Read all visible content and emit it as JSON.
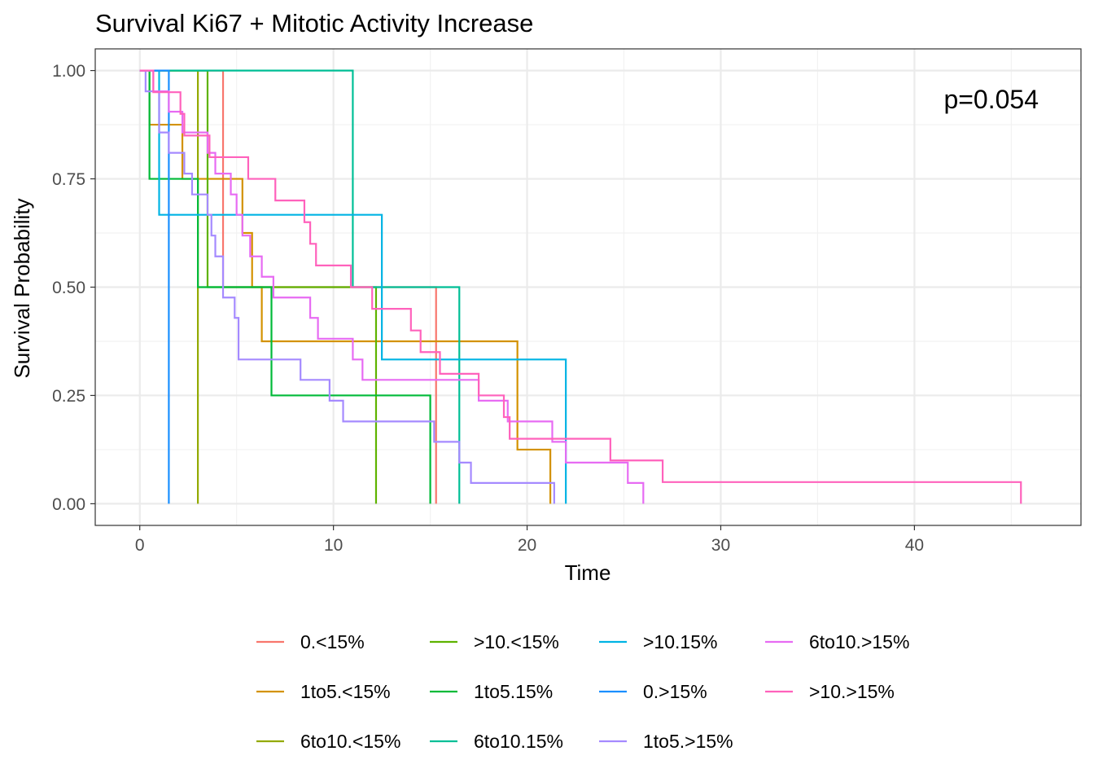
{
  "chart_data": {
    "type": "line",
    "subtype": "kaplan-meier step",
    "title": "Survival Ki67 + Mitotic Activity Increase",
    "xlabel": "Time",
    "ylabel": "Survival Probability",
    "xlim": [
      -2.3,
      48.6
    ],
    "ylim": [
      -0.05,
      1.05
    ],
    "x_ticks": [
      0,
      10,
      20,
      30,
      40
    ],
    "x_tick_labels": [
      "0",
      "10",
      "20",
      "30",
      "40"
    ],
    "y_ticks": [
      0,
      0.25,
      0.5,
      0.75,
      1
    ],
    "y_tick_labels": [
      "0.00",
      "0.25",
      "0.50",
      "0.75",
      "1.00"
    ],
    "grid": true,
    "legend_position": "bottom",
    "annotation": "p=0.054",
    "series": [
      {
        "name": "0.<15%",
        "color": "#F8766D",
        "points": [
          [
            0,
            1
          ],
          [
            4.3,
            1
          ],
          [
            4.3,
            0.5
          ],
          [
            15.3,
            0.5
          ],
          [
            15.3,
            0
          ]
        ]
      },
      {
        "name": "1to5.<15%",
        "color": "#D39200",
        "points": [
          [
            0,
            1
          ],
          [
            0.5,
            1
          ],
          [
            0.5,
            0.875
          ],
          [
            2.2,
            0.875
          ],
          [
            2.2,
            0.75
          ],
          [
            5.3,
            0.75
          ],
          [
            5.3,
            0.625
          ],
          [
            5.8,
            0.625
          ],
          [
            5.8,
            0.5
          ],
          [
            6.0,
            0.5
          ],
          [
            6.0,
            0.5
          ],
          [
            6.3,
            0.5
          ],
          [
            6.3,
            0.375
          ],
          [
            19.5,
            0.375
          ],
          [
            19.5,
            0.125
          ],
          [
            21.2,
            0.125
          ],
          [
            21.2,
            0
          ]
        ]
      },
      {
        "name": "6to10.<15%",
        "color": "#93AA00",
        "points": [
          [
            0,
            1
          ],
          [
            3.0,
            1
          ],
          [
            3.0,
            0
          ]
        ]
      },
      {
        "name": ">10.<15%",
        "color": "#5EB300",
        "points": [
          [
            0,
            1
          ],
          [
            3.5,
            1
          ],
          [
            3.5,
            0.5
          ],
          [
            12.2,
            0.5
          ],
          [
            12.2,
            0
          ]
        ]
      },
      {
        "name": "1to5.15%",
        "color": "#00BA38",
        "points": [
          [
            0,
            1
          ],
          [
            0.5,
            1
          ],
          [
            0.5,
            0.75
          ],
          [
            3.0,
            0.75
          ],
          [
            3.0,
            0.5
          ],
          [
            6.8,
            0.5
          ],
          [
            6.8,
            0.25
          ],
          [
            15.0,
            0.25
          ],
          [
            15.0,
            0
          ]
        ]
      },
      {
        "name": "6to10.15%",
        "color": "#00BF96",
        "points": [
          [
            0,
            1
          ],
          [
            11.0,
            1
          ],
          [
            11.0,
            0.5
          ],
          [
            16.5,
            0.5
          ],
          [
            16.5,
            0
          ]
        ]
      },
      {
        "name": ">10.15%",
        "color": "#00B4E4",
        "points": [
          [
            0,
            1
          ],
          [
            1.0,
            1
          ],
          [
            1.0,
            0.667
          ],
          [
            12.5,
            0.667
          ],
          [
            12.5,
            0.333
          ],
          [
            22.0,
            0.333
          ],
          [
            22.0,
            0
          ]
        ]
      },
      {
        "name": "0.>15%",
        "color": "#1A8FFF",
        "points": [
          [
            0,
            1
          ],
          [
            1.5,
            1
          ],
          [
            1.5,
            0
          ]
        ]
      },
      {
        "name": "1to5.>15%",
        "color": "#A58AFF",
        "points": [
          [
            0,
            1
          ],
          [
            0.3,
            1
          ],
          [
            0.3,
            0.952
          ],
          [
            1.0,
            0.952
          ],
          [
            1.0,
            0.857
          ],
          [
            1.5,
            0.857
          ],
          [
            1.5,
            0.81
          ],
          [
            2.3,
            0.81
          ],
          [
            2.3,
            0.762
          ],
          [
            2.7,
            0.762
          ],
          [
            2.7,
            0.714
          ],
          [
            3.5,
            0.714
          ],
          [
            3.5,
            0.667
          ],
          [
            3.7,
            0.667
          ],
          [
            3.7,
            0.619
          ],
          [
            3.9,
            0.619
          ],
          [
            3.9,
            0.571
          ],
          [
            4.3,
            0.571
          ],
          [
            4.3,
            0.476
          ],
          [
            4.9,
            0.476
          ],
          [
            4.9,
            0.429
          ],
          [
            5.1,
            0.429
          ],
          [
            5.1,
            0.333
          ],
          [
            7.2,
            0.333
          ],
          [
            7.2,
            0.333
          ],
          [
            8.3,
            0.333
          ],
          [
            8.3,
            0.286
          ],
          [
            9.8,
            0.286
          ],
          [
            9.8,
            0.238
          ],
          [
            10.5,
            0.238
          ],
          [
            10.5,
            0.19
          ],
          [
            15.2,
            0.19
          ],
          [
            15.2,
            0.143
          ],
          [
            16.5,
            0.143
          ],
          [
            16.5,
            0.095
          ],
          [
            17.1,
            0.095
          ],
          [
            17.1,
            0.048
          ],
          [
            21.4,
            0.048
          ],
          [
            21.4,
            0
          ]
        ]
      },
      {
        "name": "6to10.>15%",
        "color": "#E76BF3",
        "points": [
          [
            0,
            1
          ],
          [
            0.7,
            1
          ],
          [
            0.7,
            0.952
          ],
          [
            1.5,
            0.952
          ],
          [
            1.5,
            0.905
          ],
          [
            2.2,
            0.905
          ],
          [
            2.2,
            0.857
          ],
          [
            3.5,
            0.857
          ],
          [
            3.5,
            0.81
          ],
          [
            3.9,
            0.81
          ],
          [
            3.9,
            0.762
          ],
          [
            4.7,
            0.762
          ],
          [
            4.7,
            0.714
          ],
          [
            5.0,
            0.714
          ],
          [
            5.0,
            0.667
          ],
          [
            5.3,
            0.667
          ],
          [
            5.3,
            0.619
          ],
          [
            5.7,
            0.619
          ],
          [
            5.7,
            0.571
          ],
          [
            6.3,
            0.571
          ],
          [
            6.3,
            0.524
          ],
          [
            6.9,
            0.524
          ],
          [
            6.9,
            0.476
          ],
          [
            8.8,
            0.476
          ],
          [
            8.8,
            0.429
          ],
          [
            9.2,
            0.429
          ],
          [
            9.2,
            0.381
          ],
          [
            11.0,
            0.381
          ],
          [
            11.0,
            0.333
          ],
          [
            11.5,
            0.333
          ],
          [
            11.5,
            0.286
          ],
          [
            17.5,
            0.286
          ],
          [
            17.5,
            0.238
          ],
          [
            19.0,
            0.238
          ],
          [
            19.0,
            0.19
          ],
          [
            21.3,
            0.19
          ],
          [
            21.3,
            0.143
          ],
          [
            22.0,
            0.143
          ],
          [
            22.0,
            0.095
          ],
          [
            25.2,
            0.095
          ],
          [
            25.2,
            0.048
          ],
          [
            26.0,
            0.048
          ],
          [
            26.0,
            0
          ]
        ]
      },
      {
        "name": ">10.>15%",
        "color": "#FF62BC",
        "points": [
          [
            0,
            1
          ],
          [
            0.7,
            1
          ],
          [
            0.7,
            0.95
          ],
          [
            2.1,
            0.95
          ],
          [
            2.1,
            0.9
          ],
          [
            2.3,
            0.9
          ],
          [
            2.3,
            0.85
          ],
          [
            3.4,
            0.85
          ],
          [
            3.4,
            0.85
          ],
          [
            3.6,
            0.85
          ],
          [
            3.6,
            0.8
          ],
          [
            5.6,
            0.8
          ],
          [
            5.6,
            0.75
          ],
          [
            7.0,
            0.75
          ],
          [
            7.0,
            0.7
          ],
          [
            8.5,
            0.7
          ],
          [
            8.5,
            0.65
          ],
          [
            8.8,
            0.65
          ],
          [
            8.8,
            0.6
          ],
          [
            9.1,
            0.6
          ],
          [
            9.1,
            0.55
          ],
          [
            10.9,
            0.55
          ],
          [
            10.9,
            0.5
          ],
          [
            12.0,
            0.5
          ],
          [
            12.0,
            0.45
          ],
          [
            14.0,
            0.45
          ],
          [
            14.0,
            0.4
          ],
          [
            14.5,
            0.4
          ],
          [
            14.5,
            0.35
          ],
          [
            15.5,
            0.35
          ],
          [
            15.5,
            0.3
          ],
          [
            17.5,
            0.3
          ],
          [
            17.5,
            0.25
          ],
          [
            18.8,
            0.25
          ],
          [
            18.8,
            0.2
          ],
          [
            19.1,
            0.2
          ],
          [
            19.1,
            0.15
          ],
          [
            24.3,
            0.15
          ],
          [
            24.3,
            0.1
          ],
          [
            27.0,
            0.1
          ],
          [
            27.0,
            0.05
          ],
          [
            45.5,
            0.05
          ],
          [
            45.5,
            0
          ]
        ]
      }
    ],
    "legend": {
      "columns": [
        [
          "0.<15%",
          "1to5.<15%",
          "6to10.<15%"
        ],
        [
          ">10.<15%",
          "1to5.15%",
          "6to10.15%"
        ],
        [
          ">10.15%",
          "0.>15%",
          "1to5.>15%"
        ],
        [
          "6to10.>15%",
          ">10.>15%"
        ]
      ]
    }
  }
}
